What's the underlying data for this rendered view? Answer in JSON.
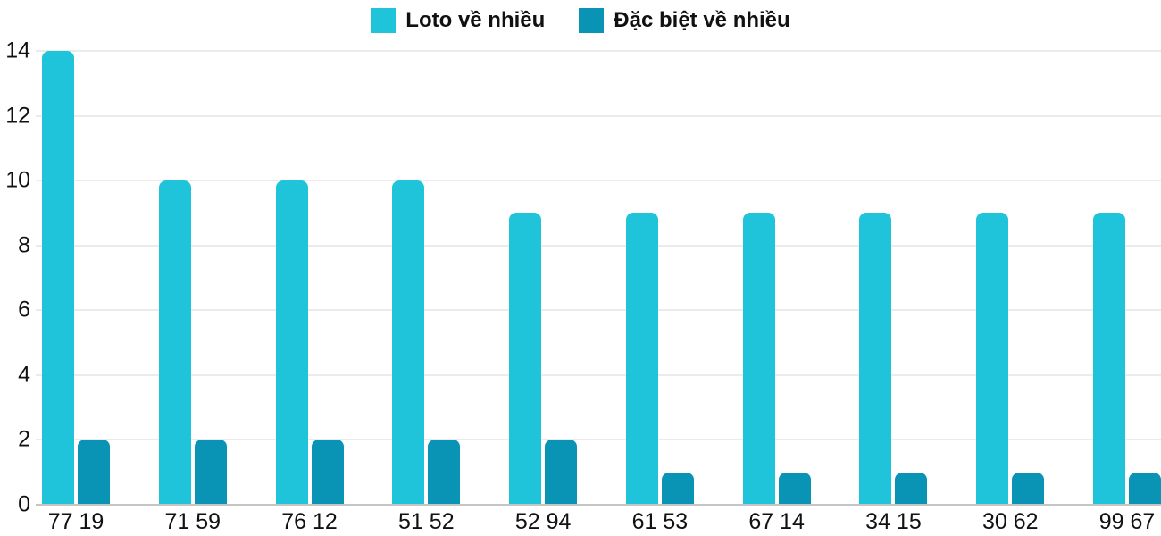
{
  "chart_data": {
    "type": "bar",
    "title": "",
    "categories": [
      "77 19",
      "71 59",
      "76 12",
      "51 52",
      "52 94",
      "61 53",
      "67 14",
      "34 15",
      "30 62",
      "99 67"
    ],
    "series": [
      {
        "name": "Loto về nhiều",
        "color": "#20C4DA",
        "values": [
          14,
          10,
          10,
          10,
          9,
          9,
          9,
          9,
          9,
          9
        ]
      },
      {
        "name": "Đặc biệt về nhiều",
        "color": "#0993B5",
        "values": [
          2,
          2,
          2,
          2,
          2,
          1,
          1,
          1,
          1,
          1
        ]
      }
    ],
    "xlabel": "",
    "ylabel": "",
    "ylim": [
      0,
      14
    ],
    "yticks": [
      0,
      2,
      4,
      6,
      8,
      10,
      12,
      14
    ],
    "legend_position": "top",
    "grid": true,
    "colors": {
      "gridline": "#ebebeb",
      "baseline": "#c4c4c4",
      "text": "#111111",
      "background": "#ffffff"
    }
  }
}
